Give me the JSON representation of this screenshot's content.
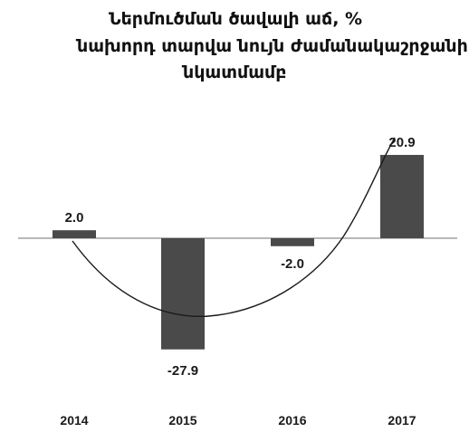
{
  "chart_data": {
    "type": "bar",
    "title_lines": [
      "Ներմուծման ծավալի աճ, %",
      "նախորդ տարվա նույն ժամանակաշրջանի",
      "նկատմամբ"
    ],
    "categories": [
      "2014",
      "2015",
      "2016",
      "2017"
    ],
    "values": [
      2.0,
      -27.9,
      -2.0,
      20.9
    ],
    "value_labels": [
      "2.0",
      "-27.9",
      "-2.0",
      "20.9"
    ],
    "ylim": [
      -30,
      25
    ],
    "grid": false,
    "legend": "none",
    "trend_line": true,
    "colors": {
      "bar": "#4a4a4a",
      "axis": "#a0a0a0",
      "trend": "#1a1a1a",
      "text": "#1a1a1a"
    }
  }
}
